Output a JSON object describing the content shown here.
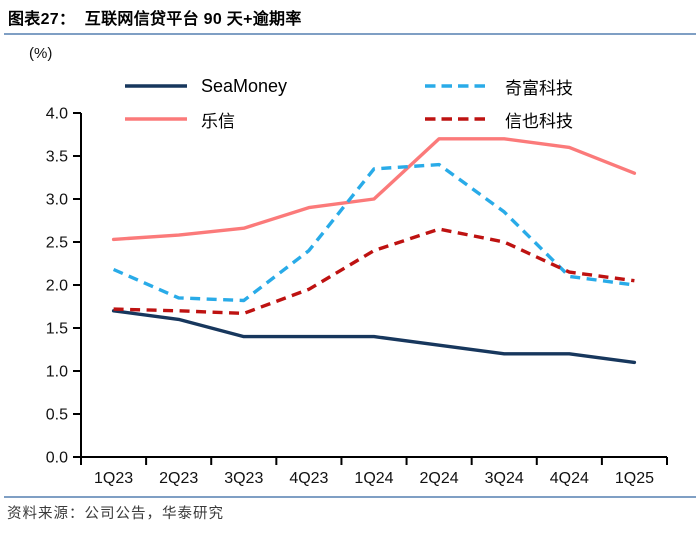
{
  "header": {
    "title": "图表27：  互联网信贷平台 90 天+逾期率"
  },
  "footer": {
    "source": "资料来源：公司公告，华泰研究"
  },
  "theme": {
    "divider_color": "#7F9FC4",
    "axis_color": "#000000"
  },
  "chart_data": {
    "type": "line",
    "title": "互联网信贷平台 90 天+逾期率",
    "unit_label": "(%)",
    "categories": [
      "1Q23",
      "2Q23",
      "3Q23",
      "4Q23",
      "1Q24",
      "2Q24",
      "3Q24",
      "4Q24",
      "1Q25"
    ],
    "series": [
      {
        "name": "SeaMoney",
        "color": "#17375D",
        "style": "solid",
        "values": [
          1.7,
          1.6,
          1.4,
          1.4,
          1.4,
          1.3,
          1.2,
          1.2,
          1.1
        ]
      },
      {
        "name": "乐信",
        "color": "#FB7A7A",
        "style": "solid",
        "values": [
          2.53,
          2.58,
          2.66,
          2.9,
          3.0,
          3.7,
          3.7,
          3.6,
          3.3
        ]
      },
      {
        "name": "奇富科技",
        "color": "#29ABE8",
        "style": "dashed",
        "values": [
          2.18,
          1.85,
          1.82,
          2.4,
          3.35,
          3.4,
          2.85,
          2.1,
          2.0
        ]
      },
      {
        "name": "信也科技",
        "color": "#BE1211",
        "style": "dashed",
        "values": [
          1.72,
          1.7,
          1.67,
          1.95,
          2.4,
          2.65,
          2.5,
          2.15,
          2.05
        ]
      }
    ],
    "ylim": [
      0,
      4.0
    ],
    "ytick_step": 0.5,
    "grid": false,
    "legend_position": "top",
    "xlabel": "",
    "ylabel": "(%)"
  }
}
